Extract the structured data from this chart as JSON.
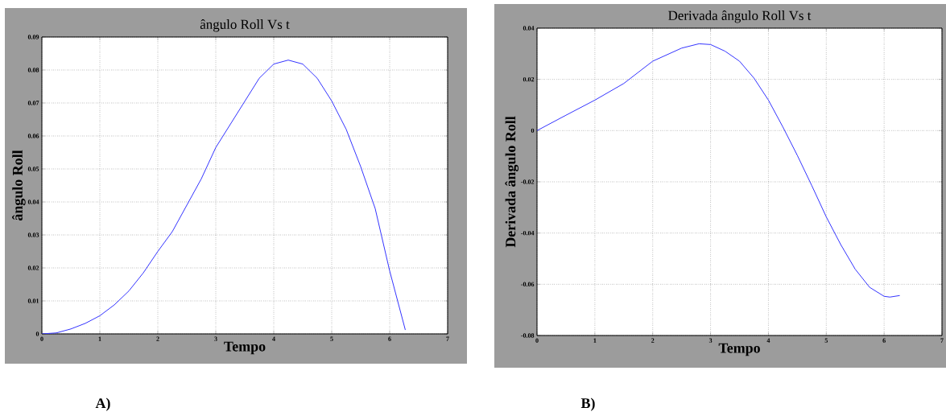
{
  "chart_data": [
    {
      "type": "line",
      "title": "ângulo Roll Vs t",
      "xlabel": "Tempo",
      "ylabel": "ângulo Roll",
      "annotations": [
        "A)"
      ],
      "x": [
        0,
        0.25,
        0.5,
        0.75,
        1,
        1.25,
        1.5,
        1.75,
        2,
        2.25,
        2.5,
        2.75,
        3,
        3.25,
        3.5,
        3.75,
        4,
        4.25,
        4.5,
        4.75,
        5,
        5.25,
        5.5,
        5.75,
        6,
        6.27
      ],
      "values": [
        0,
        0.0003,
        0.0015,
        0.0032,
        0.0055,
        0.0088,
        0.013,
        0.0185,
        0.025,
        0.031,
        0.039,
        0.047,
        0.0565,
        0.0635,
        0.0705,
        0.0775,
        0.0818,
        0.083,
        0.0818,
        0.0775,
        0.0706,
        0.062,
        0.0507,
        0.038,
        0.0191,
        0.0012
      ],
      "color": "#3333ff",
      "xlim": [
        0,
        7
      ],
      "ylim": [
        0,
        0.09
      ],
      "xticks": [
        0,
        1,
        2,
        3,
        4,
        5,
        6,
        7
      ],
      "yticks": [
        0,
        0.01,
        0.02,
        0.03,
        0.04,
        0.05,
        0.06,
        0.07,
        0.08,
        0.09
      ],
      "grid": true
    },
    {
      "type": "line",
      "title": "Derivada ângulo Roll Vs t",
      "xlabel": "Tempo",
      "ylabel": "Derivada ângulo Roll",
      "annotations": [
        "B)"
      ],
      "x": [
        0,
        0.5,
        1,
        1.5,
        2,
        2.5,
        2.8,
        3,
        3.25,
        3.5,
        3.75,
        4,
        4.25,
        4.5,
        4.75,
        5,
        5.25,
        5.5,
        5.75,
        6,
        6.1,
        6.27
      ],
      "values": [
        0,
        0.006,
        0.0119,
        0.0184,
        0.0271,
        0.0322,
        0.0339,
        0.0336,
        0.031,
        0.0271,
        0.0205,
        0.0119,
        0.0014,
        -0.0097,
        -0.0215,
        -0.0337,
        -0.0445,
        -0.0541,
        -0.0612,
        -0.0647,
        -0.065,
        -0.0644
      ],
      "color": "#3333ff",
      "xlim": [
        0,
        7
      ],
      "ylim": [
        -0.08,
        0.04
      ],
      "xticks": [
        0,
        1,
        2,
        3,
        4,
        5,
        6,
        7
      ],
      "yticks": [
        -0.08,
        -0.06,
        -0.04,
        -0.02,
        0,
        0.02,
        0.04
      ],
      "grid": true
    }
  ]
}
